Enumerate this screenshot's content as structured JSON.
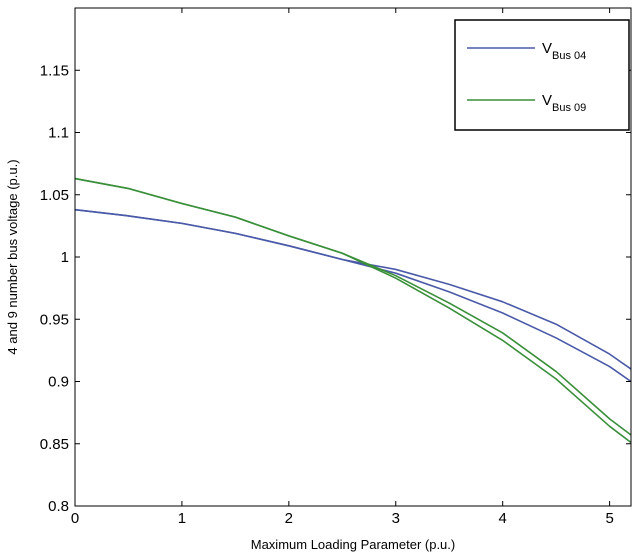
{
  "chart_data": {
    "type": "line",
    "title": "",
    "xlabel": "Maximum Loading Parameter  (p.u.)",
    "ylabel": "4 and 9 number bus voltage (p.u.)",
    "xlim": [
      0,
      5.2
    ],
    "ylim": [
      0.8,
      1.2
    ],
    "xticks": [
      0,
      1,
      2,
      3,
      4,
      5
    ],
    "yticks": [
      0.8,
      0.85,
      0.9,
      0.95,
      1,
      1.05,
      1.1,
      1.15
    ],
    "xtick_labels": [
      "0",
      "1",
      "2",
      "3",
      "4",
      "5"
    ],
    "ytick_labels": [
      "0.8",
      "0.85",
      "0.9",
      "0.95",
      "1",
      "1.05",
      "1.1",
      "1.15"
    ],
    "grid": false,
    "legend_position": "top-right",
    "series": [
      {
        "name": "V Bus 04",
        "legend_main": "V",
        "legend_sub": "Bus 04",
        "color": "#4a5aa8",
        "branch": "upper",
        "x": [
          0,
          0.5,
          1,
          1.5,
          2,
          2.5,
          3,
          3.5,
          4,
          4.5,
          5,
          5.2
        ],
        "y": [
          1.038,
          1.033,
          1.027,
          1.019,
          1.009,
          0.998,
          0.99,
          0.978,
          0.964,
          0.946,
          0.922,
          0.91
        ]
      },
      {
        "name": "V Bus 04",
        "legend_main": "V",
        "legend_sub": "Bus 04",
        "color": "#4a5aa8",
        "branch": "lower",
        "x": [
          0,
          0.5,
          1,
          1.5,
          2,
          2.5,
          3,
          3.5,
          4,
          4.5,
          5,
          5.2
        ],
        "y": [
          1.038,
          1.033,
          1.027,
          1.019,
          1.009,
          0.998,
          0.987,
          0.972,
          0.955,
          0.935,
          0.912,
          0.9
        ]
      },
      {
        "name": "V Bus 09",
        "legend_main": "V",
        "legend_sub": "Bus 09",
        "color": "#3a8f3a",
        "branch": "upper",
        "x": [
          0,
          0.5,
          1,
          1.5,
          2,
          2.5,
          3,
          3.5,
          4,
          4.5,
          5,
          5.2
        ],
        "y": [
          1.063,
          1.055,
          1.043,
          1.032,
          1.017,
          1.003,
          0.985,
          0.963,
          0.939,
          0.908,
          0.87,
          0.857
        ]
      },
      {
        "name": "V Bus 09",
        "legend_main": "V",
        "legend_sub": "Bus 09",
        "color": "#3a8f3a",
        "branch": "lower",
        "x": [
          0,
          0.5,
          1,
          1.5,
          2,
          2.5,
          3,
          3.5,
          4,
          4.5,
          5,
          5.2
        ],
        "y": [
          1.063,
          1.055,
          1.043,
          1.032,
          1.017,
          1.003,
          0.983,
          0.959,
          0.933,
          0.902,
          0.864,
          0.851
        ]
      }
    ]
  }
}
